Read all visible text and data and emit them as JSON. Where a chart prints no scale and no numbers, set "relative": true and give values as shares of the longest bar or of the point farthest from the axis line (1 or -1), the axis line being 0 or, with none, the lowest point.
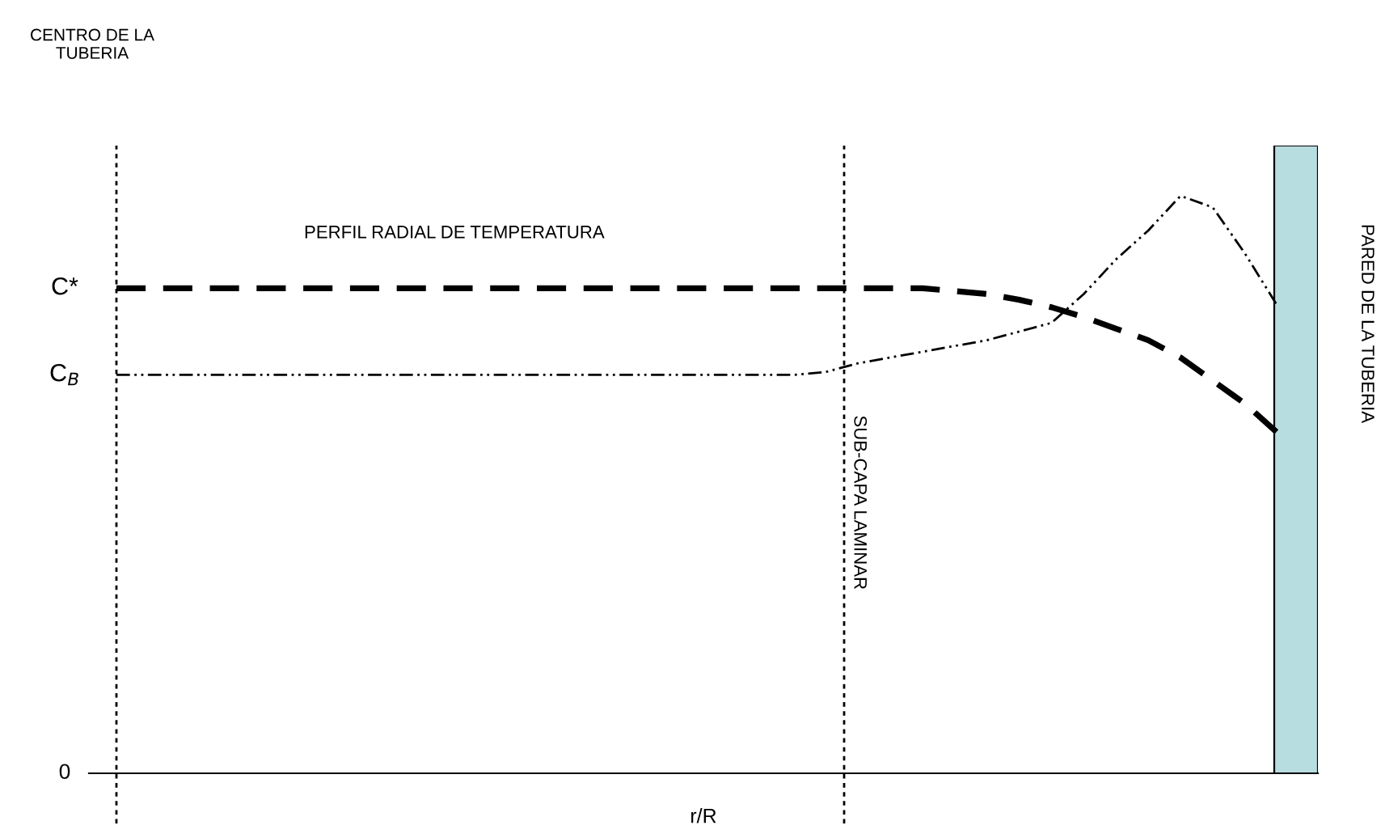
{
  "chart_data": {
    "type": "line",
    "relative": true,
    "xlabel": "r/R",
    "categories": [
      null,
      null,
      null,
      null,
      null,
      null,
      null,
      null,
      null,
      null,
      null,
      null,
      null,
      null,
      null,
      null,
      null,
      null,
      null,
      null,
      null,
      null,
      null,
      null,
      null,
      null,
      null,
      null,
      null,
      null,
      null,
      null,
      null,
      null,
      null,
      null,
      null
    ],
    "series": [
      {
        "color": "#000000",
        "line_style": "dashed",
        "values": [
          0.84,
          0.84,
          0.84,
          0.84,
          0.84,
          0.84,
          0.84,
          0.84,
          0.84,
          0.84,
          0.84,
          0.84,
          0.84,
          0.84,
          0.84,
          0.84,
          0.84,
          0.84,
          0.84,
          0.84,
          0.84,
          0.84,
          0.84,
          0.84,
          0.84,
          0.84,
          0.835,
          0.83,
          0.82,
          0.807,
          0.79,
          0.77,
          0.75,
          0.72,
          0.68,
          0.64,
          0.59
        ]
      },
      {
        "color": "#000000",
        "line_style": "dotted",
        "values": [
          0.69,
          0.69,
          0.69,
          0.69,
          0.69,
          0.69,
          0.69,
          0.69,
          0.69,
          0.69,
          0.69,
          0.69,
          0.69,
          0.69,
          0.69,
          0.69,
          0.69,
          0.69,
          0.69,
          0.69,
          0.69,
          0.69,
          0.695,
          0.71,
          0.72,
          0.73,
          0.74,
          0.75,
          0.765,
          0.78,
          0.83,
          0.89,
          0.94,
          1.0,
          0.98,
          0.9,
          0.81
        ]
      }
    ],
    "annotations": [
      "PERFIL RADIAL DE TEMPERATURA",
      "C*",
      "C$_{B}$",
      "0",
      "CENTRO DE LA\nTUBERIA",
      "SUB-CAPA LAMINAR",
      "PARED DE LA TUBERIA"
    ],
    "legend": false,
    "grid": false
  }
}
